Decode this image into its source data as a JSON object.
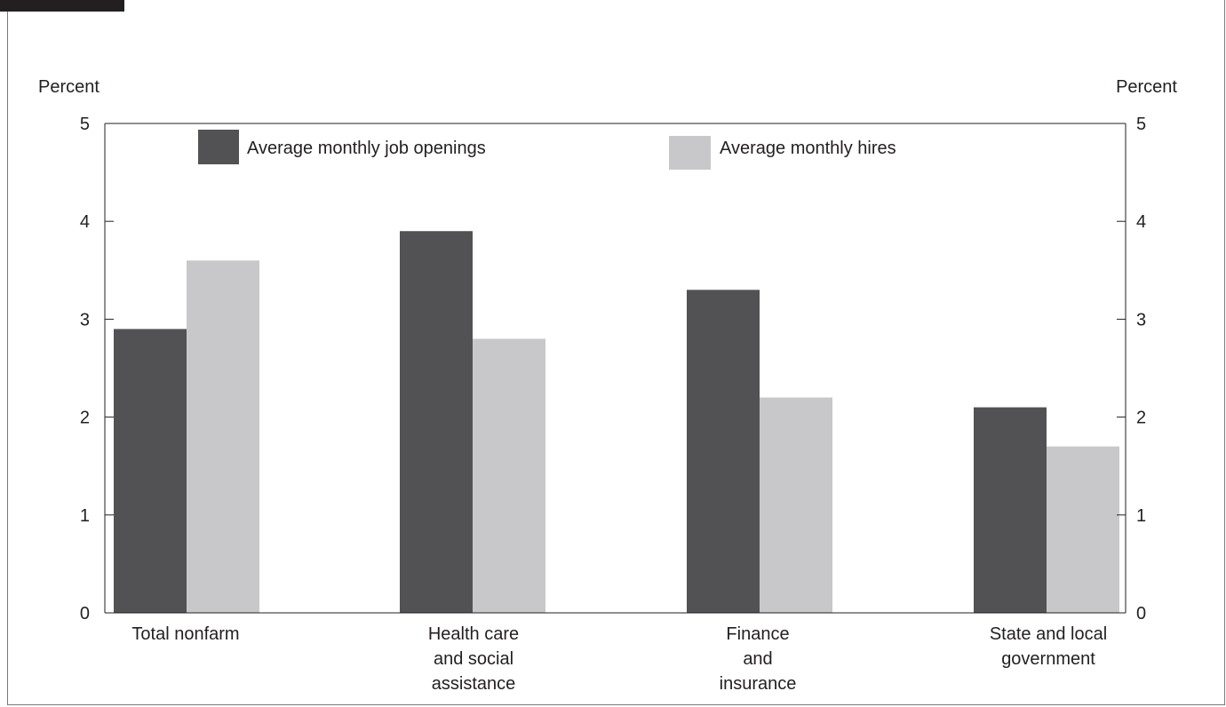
{
  "chart_data": {
    "type": "bar",
    "categories": [
      [
        "Total nonfarm"
      ],
      [
        "Health care",
        "and social",
        "assistance"
      ],
      [
        "Finance",
        "and",
        "insurance"
      ],
      [
        "State and local",
        "government"
      ]
    ],
    "series": [
      {
        "name": "Average monthly job openings",
        "values": [
          2.9,
          3.9,
          3.3,
          2.1
        ],
        "color": "#525254"
      },
      {
        "name": "Average monthly hires",
        "values": [
          3.6,
          2.8,
          2.2,
          1.7
        ],
        "color": "#c8c8ca"
      }
    ],
    "ylabel_left": "Percent",
    "ylabel_right": "Percent",
    "ylim": [
      0,
      5
    ],
    "yticks": [
      0,
      1,
      2,
      3,
      4,
      5
    ],
    "legend_placement": "top",
    "grid": false
  },
  "colors": {
    "axis": "#231f20",
    "frame": "#7a7a7a",
    "corner_tab": "#231f20"
  }
}
